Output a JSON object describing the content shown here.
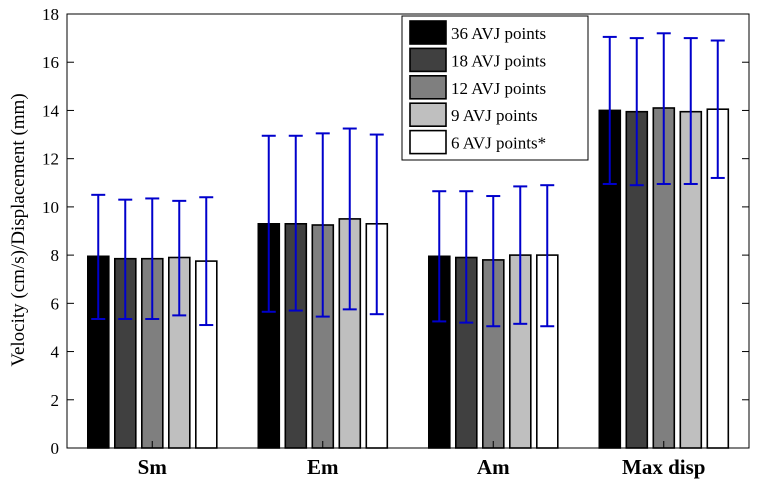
{
  "chart_data": {
    "type": "bar",
    "title": "",
    "xlabel": "",
    "ylabel": "Velocity (cm/s)/Displacement (mm)",
    "ylim": [
      0,
      18
    ],
    "yticks": [
      0,
      2,
      4,
      6,
      8,
      10,
      12,
      14,
      16,
      18
    ],
    "grid": false,
    "legend_position": "top-right",
    "categories": [
      "Sm",
      "Em",
      "Am",
      "Max disp"
    ],
    "series": [
      {
        "name": "36 AVJ points",
        "color": "#000000",
        "values": [
          7.95,
          9.3,
          7.95,
          14.0
        ],
        "error_low": [
          5.35,
          5.65,
          5.25,
          10.95
        ],
        "error_high": [
          10.5,
          12.95,
          10.65,
          17.05
        ]
      },
      {
        "name": "18 AVJ points",
        "color": "#404040",
        "values": [
          7.85,
          9.3,
          7.9,
          13.95
        ],
        "error_low": [
          5.35,
          5.7,
          5.2,
          10.9
        ],
        "error_high": [
          10.3,
          12.95,
          10.65,
          17.0
        ]
      },
      {
        "name": "12 AVJ points",
        "color": "#7f7f7f",
        "values": [
          7.85,
          9.25,
          7.8,
          14.1
        ],
        "error_low": [
          5.35,
          5.45,
          5.05,
          10.95
        ],
        "error_high": [
          10.35,
          13.05,
          10.45,
          17.2
        ]
      },
      {
        "name": "9 AVJ points",
        "color": "#bfbfbf",
        "values": [
          7.9,
          9.5,
          8.0,
          13.95
        ],
        "error_low": [
          5.5,
          5.75,
          5.15,
          10.95
        ],
        "error_high": [
          10.25,
          13.25,
          10.85,
          17.0
        ]
      },
      {
        "name": "6 AVJ points*",
        "color": "#ffffff",
        "values": [
          7.75,
          9.3,
          8.0,
          14.05
        ],
        "error_low": [
          5.1,
          5.55,
          5.05,
          11.2
        ],
        "error_high": [
          10.4,
          13.0,
          10.9,
          16.9
        ]
      }
    ],
    "error_bar_color": "#0000cc"
  }
}
